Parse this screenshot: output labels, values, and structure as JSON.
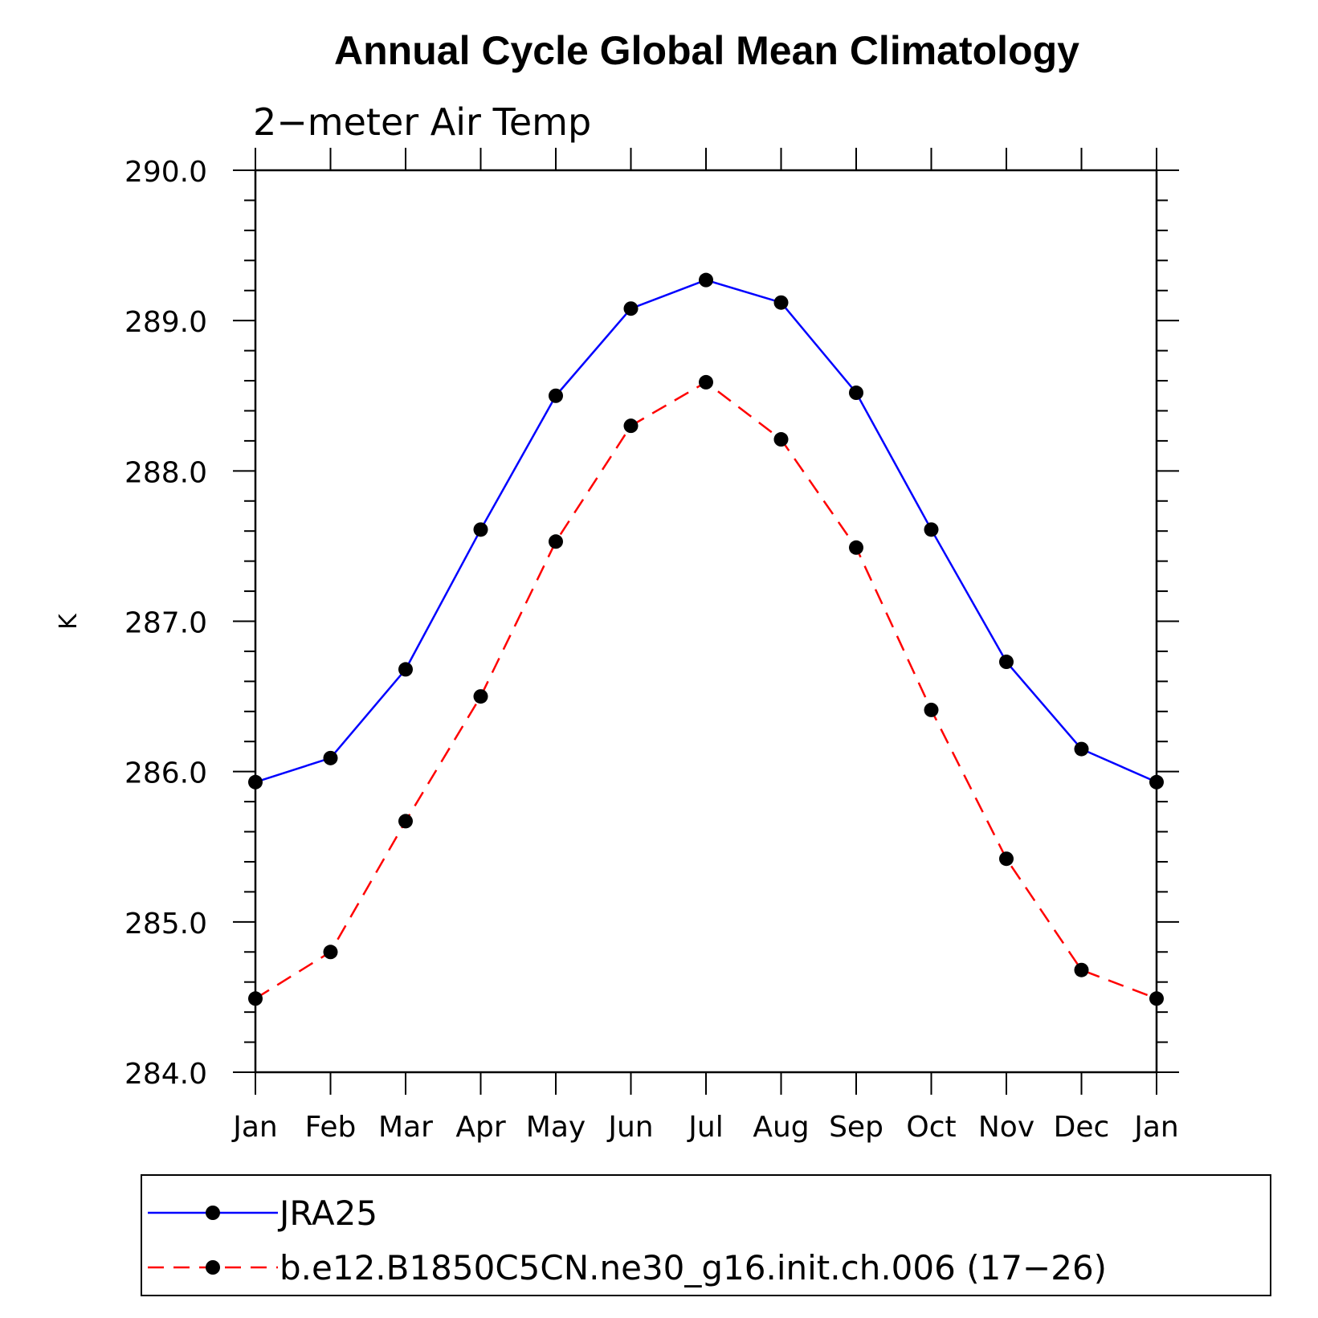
{
  "chart_data": {
    "type": "line",
    "title": "Annual Cycle Global Mean Climatology",
    "subtitle": "2−meter Air Temp",
    "xlabel": "",
    "ylabel": "K",
    "categories": [
      "Jan",
      "Feb",
      "Mar",
      "Apr",
      "May",
      "Jun",
      "Jul",
      "Aug",
      "Sep",
      "Oct",
      "Nov",
      "Dec",
      "Jan"
    ],
    "ylim": [
      284.0,
      290.0
    ],
    "y_ticks": [
      "284.0",
      "285.0",
      "286.0",
      "287.0",
      "288.0",
      "289.0",
      "290.0"
    ],
    "grid": false,
    "legend_position": "bottom",
    "series": [
      {
        "name": "JRA25",
        "color": "#0000ff",
        "line_style": "solid",
        "marker": "filled-circle",
        "values": [
          285.93,
          286.09,
          286.68,
          287.61,
          288.5,
          289.08,
          289.27,
          289.12,
          288.52,
          287.61,
          286.73,
          286.15,
          285.93
        ]
      },
      {
        "name": "b.e12.B1850C5CN.ne30_g16.init.ch.006 (17−26)",
        "color": "#ff0000",
        "line_style": "dashed",
        "marker": "filled-circle",
        "values": [
          284.49,
          284.8,
          285.67,
          286.5,
          287.53,
          288.3,
          288.59,
          288.21,
          287.49,
          286.41,
          285.42,
          284.68,
          284.49
        ]
      }
    ]
  }
}
